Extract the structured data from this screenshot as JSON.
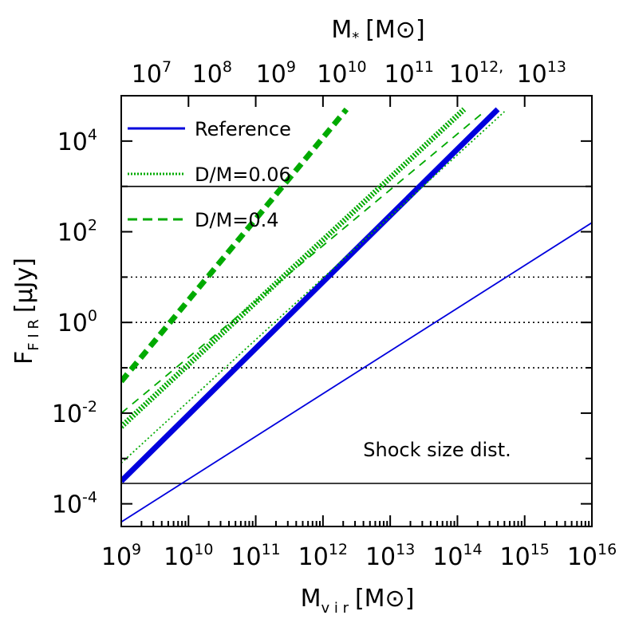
{
  "chart_data": {
    "type": "line",
    "xlabel": {
      "main": "M",
      "sub": "v i r",
      "unit": "[M⊙]"
    },
    "ylabel": {
      "main": "F",
      "sub": "F I R",
      "unit": "[μJy]"
    },
    "top_xlabel": {
      "main": "M",
      "sub": "*",
      "unit": "[M⊙]"
    },
    "xlog_range": [
      9,
      16
    ],
    "ylog_range": [
      -4.5,
      5
    ],
    "x_ticks": [
      {
        "base": "10",
        "exp": "9",
        "v": 9
      },
      {
        "base": "10",
        "exp": "10",
        "v": 10
      },
      {
        "base": "10",
        "exp": "11",
        "v": 11
      },
      {
        "base": "10",
        "exp": "12",
        "v": 12
      },
      {
        "base": "10",
        "exp": "13",
        "v": 13
      },
      {
        "base": "10",
        "exp": "14",
        "v": 14
      },
      {
        "base": "10",
        "exp": "15",
        "v": 15
      },
      {
        "base": "10",
        "exp": "16",
        "v": 16
      }
    ],
    "y_ticks": [
      {
        "base": "10",
        "exp": "-4",
        "v": -4
      },
      {
        "base": "10",
        "exp": "-2",
        "v": -2
      },
      {
        "base": "10",
        "exp": "0",
        "v": 0
      },
      {
        "base": "10",
        "exp": "2",
        "v": 2
      },
      {
        "base": "10",
        "exp": "4",
        "v": 4
      }
    ],
    "top_ticks": [
      {
        "base": "10",
        "exp": "7",
        "v": 9.45
      },
      {
        "base": "10",
        "exp": "8",
        "v": 10.35
      },
      {
        "base": "10",
        "exp": "9",
        "v": 11.3
      },
      {
        "base": "10",
        "exp": "10",
        "v": 12.28
      },
      {
        "base": "10",
        "exp": "11",
        "v": 13.28
      },
      {
        "base": "10",
        "exp": "12,",
        "v": 14.28
      },
      {
        "base": "10",
        "exp": "13",
        "v": 15.25
      }
    ],
    "hlines": [
      {
        "y": 3,
        "style": "solid"
      },
      {
        "y": 1,
        "style": "dotted"
      },
      {
        "y": 0,
        "style": "dotted"
      },
      {
        "y": -1,
        "style": "dotted"
      },
      {
        "y": -3.55,
        "style": "solid"
      }
    ],
    "series": [
      {
        "name": "Reference",
        "color": "#0000dd",
        "dash": "solid",
        "weight": "thin",
        "x": [
          9,
          16
        ],
        "y": [
          -4.4,
          2.2
        ]
      },
      {
        "name": "Reference",
        "color": "#0000dd",
        "dash": "solid",
        "weight": "thick",
        "x": [
          9,
          14.6
        ],
        "y": [
          -3.5,
          4.7
        ]
      },
      {
        "name": "D/M=0.06",
        "color": "#00aa00",
        "dash": "dotted",
        "weight": "thin",
        "x": [
          9,
          14.7
        ],
        "y": [
          -3.1,
          4.65
        ]
      },
      {
        "name": "D/M=0.06",
        "color": "#00aa00",
        "dash": "dotted",
        "weight": "thick",
        "x": [
          9,
          14.1
        ],
        "y": [
          -2.3,
          4.7
        ]
      },
      {
        "name": "D/M=0.4",
        "color": "#00aa00",
        "dash": "dashed",
        "weight": "thin",
        "x": [
          9,
          14.4
        ],
        "y": [
          -2.0,
          4.65
        ]
      },
      {
        "name": "D/M=0.4",
        "color": "#00aa00",
        "dash": "dashed",
        "weight": "thick",
        "x": [
          9,
          12.35
        ],
        "y": [
          -1.3,
          4.7
        ]
      }
    ],
    "legend": [
      {
        "label": "Reference",
        "color": "#0000dd",
        "dash": "solid"
      },
      {
        "label": "D/M=0.06",
        "color": "#00aa00",
        "dash": "dotted"
      },
      {
        "label": "D/M=0.4",
        "color": "#00aa00",
        "dash": "dashed"
      }
    ],
    "annotation": "Shock size dist."
  }
}
